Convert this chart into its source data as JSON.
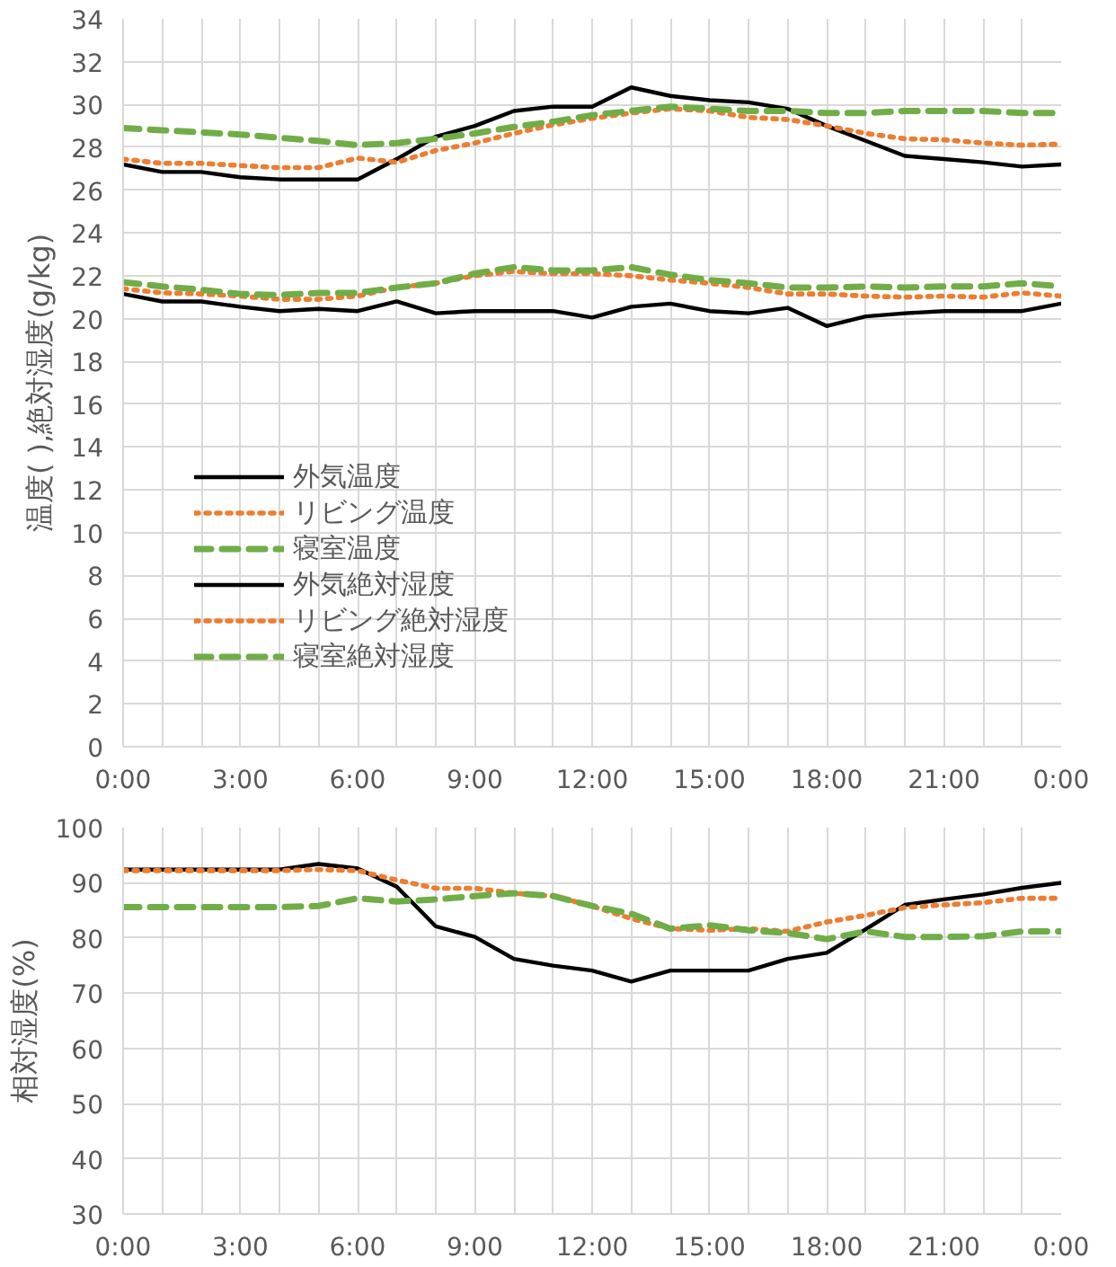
{
  "chart_data": [
    {
      "type": "line",
      "ylabel": "温度( ),絶対湿度(g/kg)",
      "x": [
        0,
        1,
        2,
        3,
        4,
        5,
        6,
        7,
        8,
        9,
        10,
        11,
        12,
        13,
        14,
        15,
        16,
        17,
        18,
        19,
        20,
        21,
        22,
        23,
        24
      ],
      "xlim": [
        0,
        24
      ],
      "xticks": [
        {
          "value": 0,
          "label": "0:00"
        },
        {
          "value": 1,
          "label": null
        },
        {
          "value": 2,
          "label": null
        },
        {
          "value": 3,
          "label": "3:00"
        },
        {
          "value": 4,
          "label": null
        },
        {
          "value": 5,
          "label": null
        },
        {
          "value": 6,
          "label": "6:00"
        },
        {
          "value": 7,
          "label": null
        },
        {
          "value": 8,
          "label": null
        },
        {
          "value": 9,
          "label": "9:00"
        },
        {
          "value": 10,
          "label": null
        },
        {
          "value": 11,
          "label": null
        },
        {
          "value": 12,
          "label": "12:00"
        },
        {
          "value": 13,
          "label": null
        },
        {
          "value": 14,
          "label": null
        },
        {
          "value": 15,
          "label": "15:00"
        },
        {
          "value": 16,
          "label": null
        },
        {
          "value": 17,
          "label": null
        },
        {
          "value": 18,
          "label": "18:00"
        },
        {
          "value": 19,
          "label": null
        },
        {
          "value": 20,
          "label": null
        },
        {
          "value": 21,
          "label": "21:00"
        },
        {
          "value": 22,
          "label": null
        },
        {
          "value": 23,
          "label": null
        },
        {
          "value": 24,
          "label": "0:00"
        }
      ],
      "ylim": [
        0,
        34
      ],
      "yticks": [
        0,
        2,
        4,
        6,
        8,
        10,
        12,
        14,
        16,
        18,
        20,
        22,
        24,
        26,
        28,
        30,
        32,
        34
      ],
      "grid": true,
      "legend": "bottom left",
      "series": [
        {
          "name": "外気温度",
          "color": "#000000",
          "line_style": "solid",
          "values": [
            27.2,
            26.85,
            26.85,
            26.6,
            26.5,
            26.5,
            26.5,
            27.45,
            28.5,
            29,
            29.7,
            29.9,
            29.9,
            30.8,
            30.4,
            30.2,
            30.1,
            29.8,
            29,
            28.3,
            27.6,
            27.45,
            27.3,
            27.1,
            27.2
          ]
        },
        {
          "name": "リビング温度",
          "color": "#ed7d31",
          "line_style": "dotted",
          "values": [
            27.45,
            27.25,
            27.25,
            27.15,
            27.05,
            27.05,
            27.5,
            27.3,
            27.85,
            28.2,
            28.65,
            29.05,
            29.35,
            29.6,
            29.8,
            29.7,
            29.4,
            29.3,
            29,
            28.65,
            28.4,
            28.35,
            28.2,
            28.1,
            28.15
          ]
        },
        {
          "name": "寝室温度",
          "color": "#70ad47",
          "line_style": "dashed",
          "values": [
            28.9,
            28.8,
            28.7,
            28.6,
            28.45,
            28.3,
            28.1,
            28.2,
            28.4,
            28.65,
            28.95,
            29.2,
            29.5,
            29.7,
            29.9,
            29.8,
            29.7,
            29.7,
            29.6,
            29.6,
            29.7,
            29.7,
            29.7,
            29.6,
            29.6
          ]
        },
        {
          "name": "外気絶対湿度",
          "color": "#000000",
          "line_style": "solid",
          "values": [
            21.15,
            20.8,
            20.8,
            20.55,
            20.35,
            20.45,
            20.35,
            20.8,
            20.25,
            20.35,
            20.35,
            20.35,
            20.05,
            20.55,
            20.7,
            20.35,
            20.25,
            20.5,
            19.65,
            20.1,
            20.25,
            20.35,
            20.35,
            20.35,
            20.7
          ]
        },
        {
          "name": "リビング絶対湿度",
          "color": "#ed7d31",
          "line_style": "dotted",
          "values": [
            21.4,
            21.2,
            21.15,
            21.05,
            20.9,
            20.9,
            21.05,
            21.45,
            21.65,
            22,
            22.2,
            22.1,
            22.1,
            22,
            21.8,
            21.65,
            21.45,
            21.15,
            21.15,
            21.05,
            21,
            21.05,
            21,
            21.2,
            21.05
          ]
        },
        {
          "name": "寝室絶対湿度",
          "color": "#70ad47",
          "line_style": "dashed",
          "values": [
            21.7,
            21.5,
            21.35,
            21.15,
            21.1,
            21.2,
            21.2,
            21.45,
            21.65,
            22.1,
            22.4,
            22.25,
            22.25,
            22.4,
            22.05,
            21.8,
            21.65,
            21.45,
            21.45,
            21.5,
            21.45,
            21.5,
            21.5,
            21.65,
            21.5
          ]
        }
      ]
    },
    {
      "type": "line",
      "ylabel": "相対湿度(%)",
      "x": [
        0,
        1,
        2,
        3,
        4,
        5,
        6,
        7,
        8,
        9,
        10,
        11,
        12,
        13,
        14,
        15,
        16,
        17,
        18,
        19,
        20,
        21,
        22,
        23,
        24
      ],
      "xlim": [
        0,
        24
      ],
      "xticks": [
        {
          "value": 0,
          "label": "0:00"
        },
        {
          "value": 1,
          "label": null
        },
        {
          "value": 2,
          "label": null
        },
        {
          "value": 3,
          "label": "3:00"
        },
        {
          "value": 4,
          "label": null
        },
        {
          "value": 5,
          "label": null
        },
        {
          "value": 6,
          "label": "6:00"
        },
        {
          "value": 7,
          "label": null
        },
        {
          "value": 8,
          "label": null
        },
        {
          "value": 9,
          "label": "9:00"
        },
        {
          "value": 10,
          "label": null
        },
        {
          "value": 11,
          "label": null
        },
        {
          "value": 12,
          "label": "12:00"
        },
        {
          "value": 13,
          "label": null
        },
        {
          "value": 14,
          "label": null
        },
        {
          "value": 15,
          "label": "15:00"
        },
        {
          "value": 16,
          "label": null
        },
        {
          "value": 17,
          "label": null
        },
        {
          "value": 18,
          "label": "18:00"
        },
        {
          "value": 19,
          "label": null
        },
        {
          "value": 20,
          "label": null
        },
        {
          "value": 21,
          "label": "21:00"
        },
        {
          "value": 22,
          "label": null
        },
        {
          "value": 23,
          "label": null
        },
        {
          "value": 24,
          "label": "0:00"
        }
      ],
      "ylim": [
        30,
        100
      ],
      "yticks": [
        30,
        40,
        50,
        60,
        70,
        80,
        90,
        100
      ],
      "grid": true,
      "series": [
        {
          "color": "#000000",
          "line_style": "solid",
          "values": [
            92.4,
            92.4,
            92.4,
            92.4,
            92.4,
            93.4,
            92.6,
            89.3,
            82.1,
            80.2,
            76.2,
            75,
            74.1,
            72.1,
            74.1,
            74.1,
            74.1,
            76.2,
            77.3,
            81.6,
            86,
            87,
            87.9,
            89.1,
            90
          ]
        },
        {
          "color": "#ed7d31",
          "line_style": "dotted",
          "values": [
            92.2,
            92.2,
            92.2,
            92.2,
            92.2,
            92.4,
            92.2,
            90.5,
            89,
            89,
            88.1,
            87.6,
            85.8,
            83.5,
            81.7,
            81.4,
            81.7,
            81.2,
            82.9,
            84.1,
            85.5,
            86,
            86.4,
            87.2,
            87.2
          ]
        },
        {
          "color": "#70ad47",
          "line_style": "dashed",
          "values": [
            85.6,
            85.6,
            85.6,
            85.6,
            85.6,
            85.8,
            87.2,
            86.6,
            87,
            87.6,
            88.1,
            87.6,
            85.8,
            84.4,
            81.7,
            82.3,
            81.4,
            80.9,
            79.8,
            81.2,
            80.2,
            80.2,
            80.3,
            81.2,
            81.2
          ]
        }
      ]
    }
  ]
}
